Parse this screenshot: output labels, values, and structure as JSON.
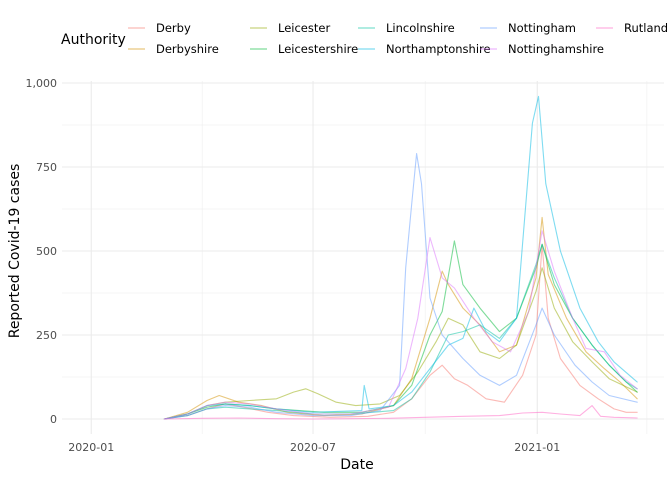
{
  "chart_data": {
    "type": "line",
    "title": "",
    "xlabel": "Date",
    "ylabel": "Reported Covid-19 cases",
    "x_ticks": [
      "2020-01",
      "2020-07",
      "2021-01"
    ],
    "y_ticks": [
      "0",
      "250",
      "500",
      "750",
      "1,000"
    ],
    "ylim": [
      0,
      1000
    ],
    "xlim": [
      "2019-12-08",
      "2021-04-15"
    ],
    "grid": true,
    "legend": {
      "title": "Authority",
      "placement": "top",
      "entries": [
        "Derby",
        "Derbyshire",
        "Leicester",
        "Leicestershire",
        "Lincolnshire",
        "Northamptonshire",
        "Nottingham",
        "Nottinghamshire",
        "Rutland"
      ]
    },
    "series": [
      {
        "name": "Derby",
        "color": "#F8766D",
        "points": [
          [
            "2020-03-01",
            0
          ],
          [
            "2020-03-20",
            10
          ],
          [
            "2020-04-05",
            30
          ],
          [
            "2020-04-20",
            45
          ],
          [
            "2020-05-05",
            35
          ],
          [
            "2020-05-25",
            20
          ],
          [
            "2020-06-15",
            10
          ],
          [
            "2020-07-15",
            5
          ],
          [
            "2020-08-15",
            8
          ],
          [
            "2020-09-05",
            20
          ],
          [
            "2020-09-20",
            60
          ],
          [
            "2020-10-05",
            130
          ],
          [
            "2020-10-15",
            160
          ],
          [
            "2020-10-25",
            120
          ],
          [
            "2020-11-05",
            100
          ],
          [
            "2020-11-20",
            60
          ],
          [
            "2020-12-05",
            50
          ],
          [
            "2020-12-20",
            130
          ],
          [
            "2020-12-31",
            250
          ],
          [
            "2021-01-05",
            520
          ],
          [
            "2021-01-10",
            300
          ],
          [
            "2021-01-20",
            180
          ],
          [
            "2021-02-05",
            100
          ],
          [
            "2021-02-20",
            60
          ],
          [
            "2021-03-05",
            30
          ],
          [
            "2021-03-15",
            20
          ],
          [
            "2021-03-24",
            20
          ]
        ]
      },
      {
        "name": "Derbyshire",
        "color": "#D39200",
        "points": [
          [
            "2020-03-01",
            0
          ],
          [
            "2020-03-20",
            20
          ],
          [
            "2020-04-05",
            55
          ],
          [
            "2020-04-15",
            70
          ],
          [
            "2020-05-01",
            50
          ],
          [
            "2020-05-20",
            40
          ],
          [
            "2020-06-10",
            20
          ],
          [
            "2020-07-10",
            10
          ],
          [
            "2020-08-10",
            15
          ],
          [
            "2020-09-05",
            40
          ],
          [
            "2020-09-20",
            120
          ],
          [
            "2020-10-05",
            300
          ],
          [
            "2020-10-15",
            440
          ],
          [
            "2020-10-20",
            400
          ],
          [
            "2020-11-01",
            330
          ],
          [
            "2020-11-15",
            280
          ],
          [
            "2020-12-01",
            200
          ],
          [
            "2020-12-15",
            220
          ],
          [
            "2020-12-31",
            420
          ],
          [
            "2021-01-05",
            600
          ],
          [
            "2021-01-10",
            430
          ],
          [
            "2021-01-25",
            300
          ],
          [
            "2021-02-10",
            200
          ],
          [
            "2021-02-25",
            150
          ],
          [
            "2021-03-10",
            110
          ],
          [
            "2021-03-24",
            60
          ]
        ]
      },
      {
        "name": "Leicester",
        "color": "#93AA00",
        "points": [
          [
            "2020-03-01",
            0
          ],
          [
            "2020-03-20",
            15
          ],
          [
            "2020-04-05",
            40
          ],
          [
            "2020-04-20",
            50
          ],
          [
            "2020-05-10",
            55
          ],
          [
            "2020-06-01",
            60
          ],
          [
            "2020-06-15",
            80
          ],
          [
            "2020-06-25",
            90
          ],
          [
            "2020-07-05",
            75
          ],
          [
            "2020-07-20",
            50
          ],
          [
            "2020-08-05",
            40
          ],
          [
            "2020-08-25",
            45
          ],
          [
            "2020-09-10",
            70
          ],
          [
            "2020-09-25",
            140
          ],
          [
            "2020-10-10",
            230
          ],
          [
            "2020-10-20",
            300
          ],
          [
            "2020-11-01",
            280
          ],
          [
            "2020-11-15",
            200
          ],
          [
            "2020-12-01",
            180
          ],
          [
            "2020-12-15",
            220
          ],
          [
            "2020-12-31",
            380
          ],
          [
            "2021-01-05",
            450
          ],
          [
            "2021-01-15",
            330
          ],
          [
            "2021-01-30",
            230
          ],
          [
            "2021-02-15",
            170
          ],
          [
            "2021-03-01",
            120
          ],
          [
            "2021-03-24",
            80
          ]
        ]
      },
      {
        "name": "Leicestershire",
        "color": "#00BA38",
        "points": [
          [
            "2020-03-01",
            0
          ],
          [
            "2020-03-20",
            15
          ],
          [
            "2020-04-05",
            35
          ],
          [
            "2020-04-20",
            45
          ],
          [
            "2020-05-10",
            40
          ],
          [
            "2020-06-01",
            30
          ],
          [
            "2020-06-20",
            25
          ],
          [
            "2020-07-10",
            20
          ],
          [
            "2020-08-10",
            20
          ],
          [
            "2020-09-05",
            40
          ],
          [
            "2020-09-20",
            100
          ],
          [
            "2020-10-05",
            250
          ],
          [
            "2020-10-15",
            320
          ],
          [
            "2020-10-25",
            530
          ],
          [
            "2020-11-01",
            400
          ],
          [
            "2020-11-15",
            330
          ],
          [
            "2020-12-01",
            260
          ],
          [
            "2020-12-15",
            300
          ],
          [
            "2020-12-31",
            450
          ],
          [
            "2021-01-05",
            520
          ],
          [
            "2021-01-15",
            400
          ],
          [
            "2021-01-30",
            300
          ],
          [
            "2021-02-15",
            220
          ],
          [
            "2021-03-01",
            160
          ],
          [
            "2021-03-15",
            110
          ],
          [
            "2021-03-24",
            80
          ]
        ]
      },
      {
        "name": "Lincolnshire",
        "color": "#00C19F",
        "points": [
          [
            "2020-03-01",
            0
          ],
          [
            "2020-03-20",
            10
          ],
          [
            "2020-04-05",
            30
          ],
          [
            "2020-04-20",
            35
          ],
          [
            "2020-05-10",
            30
          ],
          [
            "2020-06-01",
            25
          ],
          [
            "2020-07-01",
            15
          ],
          [
            "2020-08-01",
            15
          ],
          [
            "2020-09-05",
            25
          ],
          [
            "2020-09-20",
            60
          ],
          [
            "2020-10-05",
            140
          ],
          [
            "2020-10-20",
            250
          ],
          [
            "2020-11-01",
            260
          ],
          [
            "2020-11-15",
            280
          ],
          [
            "2020-12-01",
            240
          ],
          [
            "2020-12-15",
            300
          ],
          [
            "2020-12-31",
            460
          ],
          [
            "2021-01-05",
            520
          ],
          [
            "2021-01-15",
            420
          ],
          [
            "2021-01-30",
            300
          ],
          [
            "2021-02-15",
            220
          ],
          [
            "2021-03-01",
            160
          ],
          [
            "2021-03-15",
            110
          ],
          [
            "2021-03-24",
            90
          ]
        ]
      },
      {
        "name": "Northamptonshire",
        "color": "#00B9E3",
        "points": [
          [
            "2020-03-01",
            0
          ],
          [
            "2020-03-20",
            15
          ],
          [
            "2020-04-05",
            40
          ],
          [
            "2020-04-20",
            45
          ],
          [
            "2020-05-10",
            40
          ],
          [
            "2020-06-01",
            30
          ],
          [
            "2020-07-01",
            20
          ],
          [
            "2020-08-10",
            25
          ],
          [
            "2020-08-12",
            100
          ],
          [
            "2020-08-16",
            30
          ],
          [
            "2020-09-05",
            40
          ],
          [
            "2020-09-20",
            80
          ],
          [
            "2020-10-05",
            150
          ],
          [
            "2020-10-20",
            220
          ],
          [
            "2020-11-01",
            240
          ],
          [
            "2020-11-10",
            330
          ],
          [
            "2020-11-20",
            260
          ],
          [
            "2020-12-01",
            230
          ],
          [
            "2020-12-15",
            300
          ],
          [
            "2020-12-28",
            880
          ],
          [
            "2021-01-02",
            960
          ],
          [
            "2021-01-08",
            700
          ],
          [
            "2021-01-20",
            500
          ],
          [
            "2021-02-05",
            330
          ],
          [
            "2021-02-20",
            230
          ],
          [
            "2021-03-05",
            170
          ],
          [
            "2021-03-24",
            110
          ]
        ]
      },
      {
        "name": "Nottingham",
        "color": "#619CFF",
        "points": [
          [
            "2020-03-01",
            0
          ],
          [
            "2020-03-20",
            10
          ],
          [
            "2020-04-05",
            30
          ],
          [
            "2020-04-20",
            40
          ],
          [
            "2020-05-10",
            35
          ],
          [
            "2020-06-01",
            20
          ],
          [
            "2020-07-01",
            10
          ],
          [
            "2020-08-01",
            10
          ],
          [
            "2020-08-25",
            25
          ],
          [
            "2020-09-10",
            100
          ],
          [
            "2020-09-15",
            450
          ],
          [
            "2020-09-20",
            640
          ],
          [
            "2020-09-24",
            790
          ],
          [
            "2020-09-28",
            700
          ],
          [
            "2020-10-05",
            360
          ],
          [
            "2020-10-15",
            250
          ],
          [
            "2020-11-01",
            180
          ],
          [
            "2020-11-15",
            130
          ],
          [
            "2020-12-01",
            100
          ],
          [
            "2020-12-15",
            130
          ],
          [
            "2020-12-31",
            280
          ],
          [
            "2021-01-05",
            330
          ],
          [
            "2021-01-15",
            250
          ],
          [
            "2021-02-01",
            160
          ],
          [
            "2021-02-15",
            110
          ],
          [
            "2021-03-01",
            70
          ],
          [
            "2021-03-24",
            50
          ]
        ]
      },
      {
        "name": "Nottinghamshire",
        "color": "#DB72FB",
        "points": [
          [
            "2020-03-01",
            0
          ],
          [
            "2020-03-20",
            15
          ],
          [
            "2020-04-05",
            40
          ],
          [
            "2020-04-20",
            50
          ],
          [
            "2020-05-10",
            45
          ],
          [
            "2020-06-01",
            30
          ],
          [
            "2020-07-01",
            15
          ],
          [
            "2020-08-01",
            15
          ],
          [
            "2020-09-01",
            35
          ],
          [
            "2020-09-15",
            150
          ],
          [
            "2020-09-25",
            300
          ],
          [
            "2020-10-05",
            540
          ],
          [
            "2020-10-15",
            420
          ],
          [
            "2020-10-25",
            390
          ],
          [
            "2020-11-10",
            300
          ],
          [
            "2020-11-25",
            230
          ],
          [
            "2020-12-10",
            200
          ],
          [
            "2020-12-25",
            320
          ],
          [
            "2021-01-05",
            560
          ],
          [
            "2021-01-15",
            440
          ],
          [
            "2021-01-30",
            300
          ],
          [
            "2021-02-10",
            210
          ],
          [
            "2021-02-25",
            200
          ],
          [
            "2021-03-10",
            130
          ],
          [
            "2021-03-24",
            90
          ]
        ]
      },
      {
        "name": "Rutland",
        "color": "#FF61C3",
        "points": [
          [
            "2020-03-01",
            0
          ],
          [
            "2020-04-01",
            2
          ],
          [
            "2020-05-01",
            3
          ],
          [
            "2020-06-01",
            1
          ],
          [
            "2020-07-01",
            0
          ],
          [
            "2020-08-01",
            1
          ],
          [
            "2020-09-01",
            2
          ],
          [
            "2020-10-01",
            5
          ],
          [
            "2020-11-01",
            8
          ],
          [
            "2020-12-01",
            10
          ],
          [
            "2020-12-20",
            18
          ],
          [
            "2021-01-05",
            20
          ],
          [
            "2021-01-20",
            15
          ],
          [
            "2021-02-05",
            10
          ],
          [
            "2021-02-15",
            40
          ],
          [
            "2021-02-22",
            8
          ],
          [
            "2021-03-05",
            5
          ],
          [
            "2021-03-24",
            3
          ]
        ]
      }
    ]
  }
}
